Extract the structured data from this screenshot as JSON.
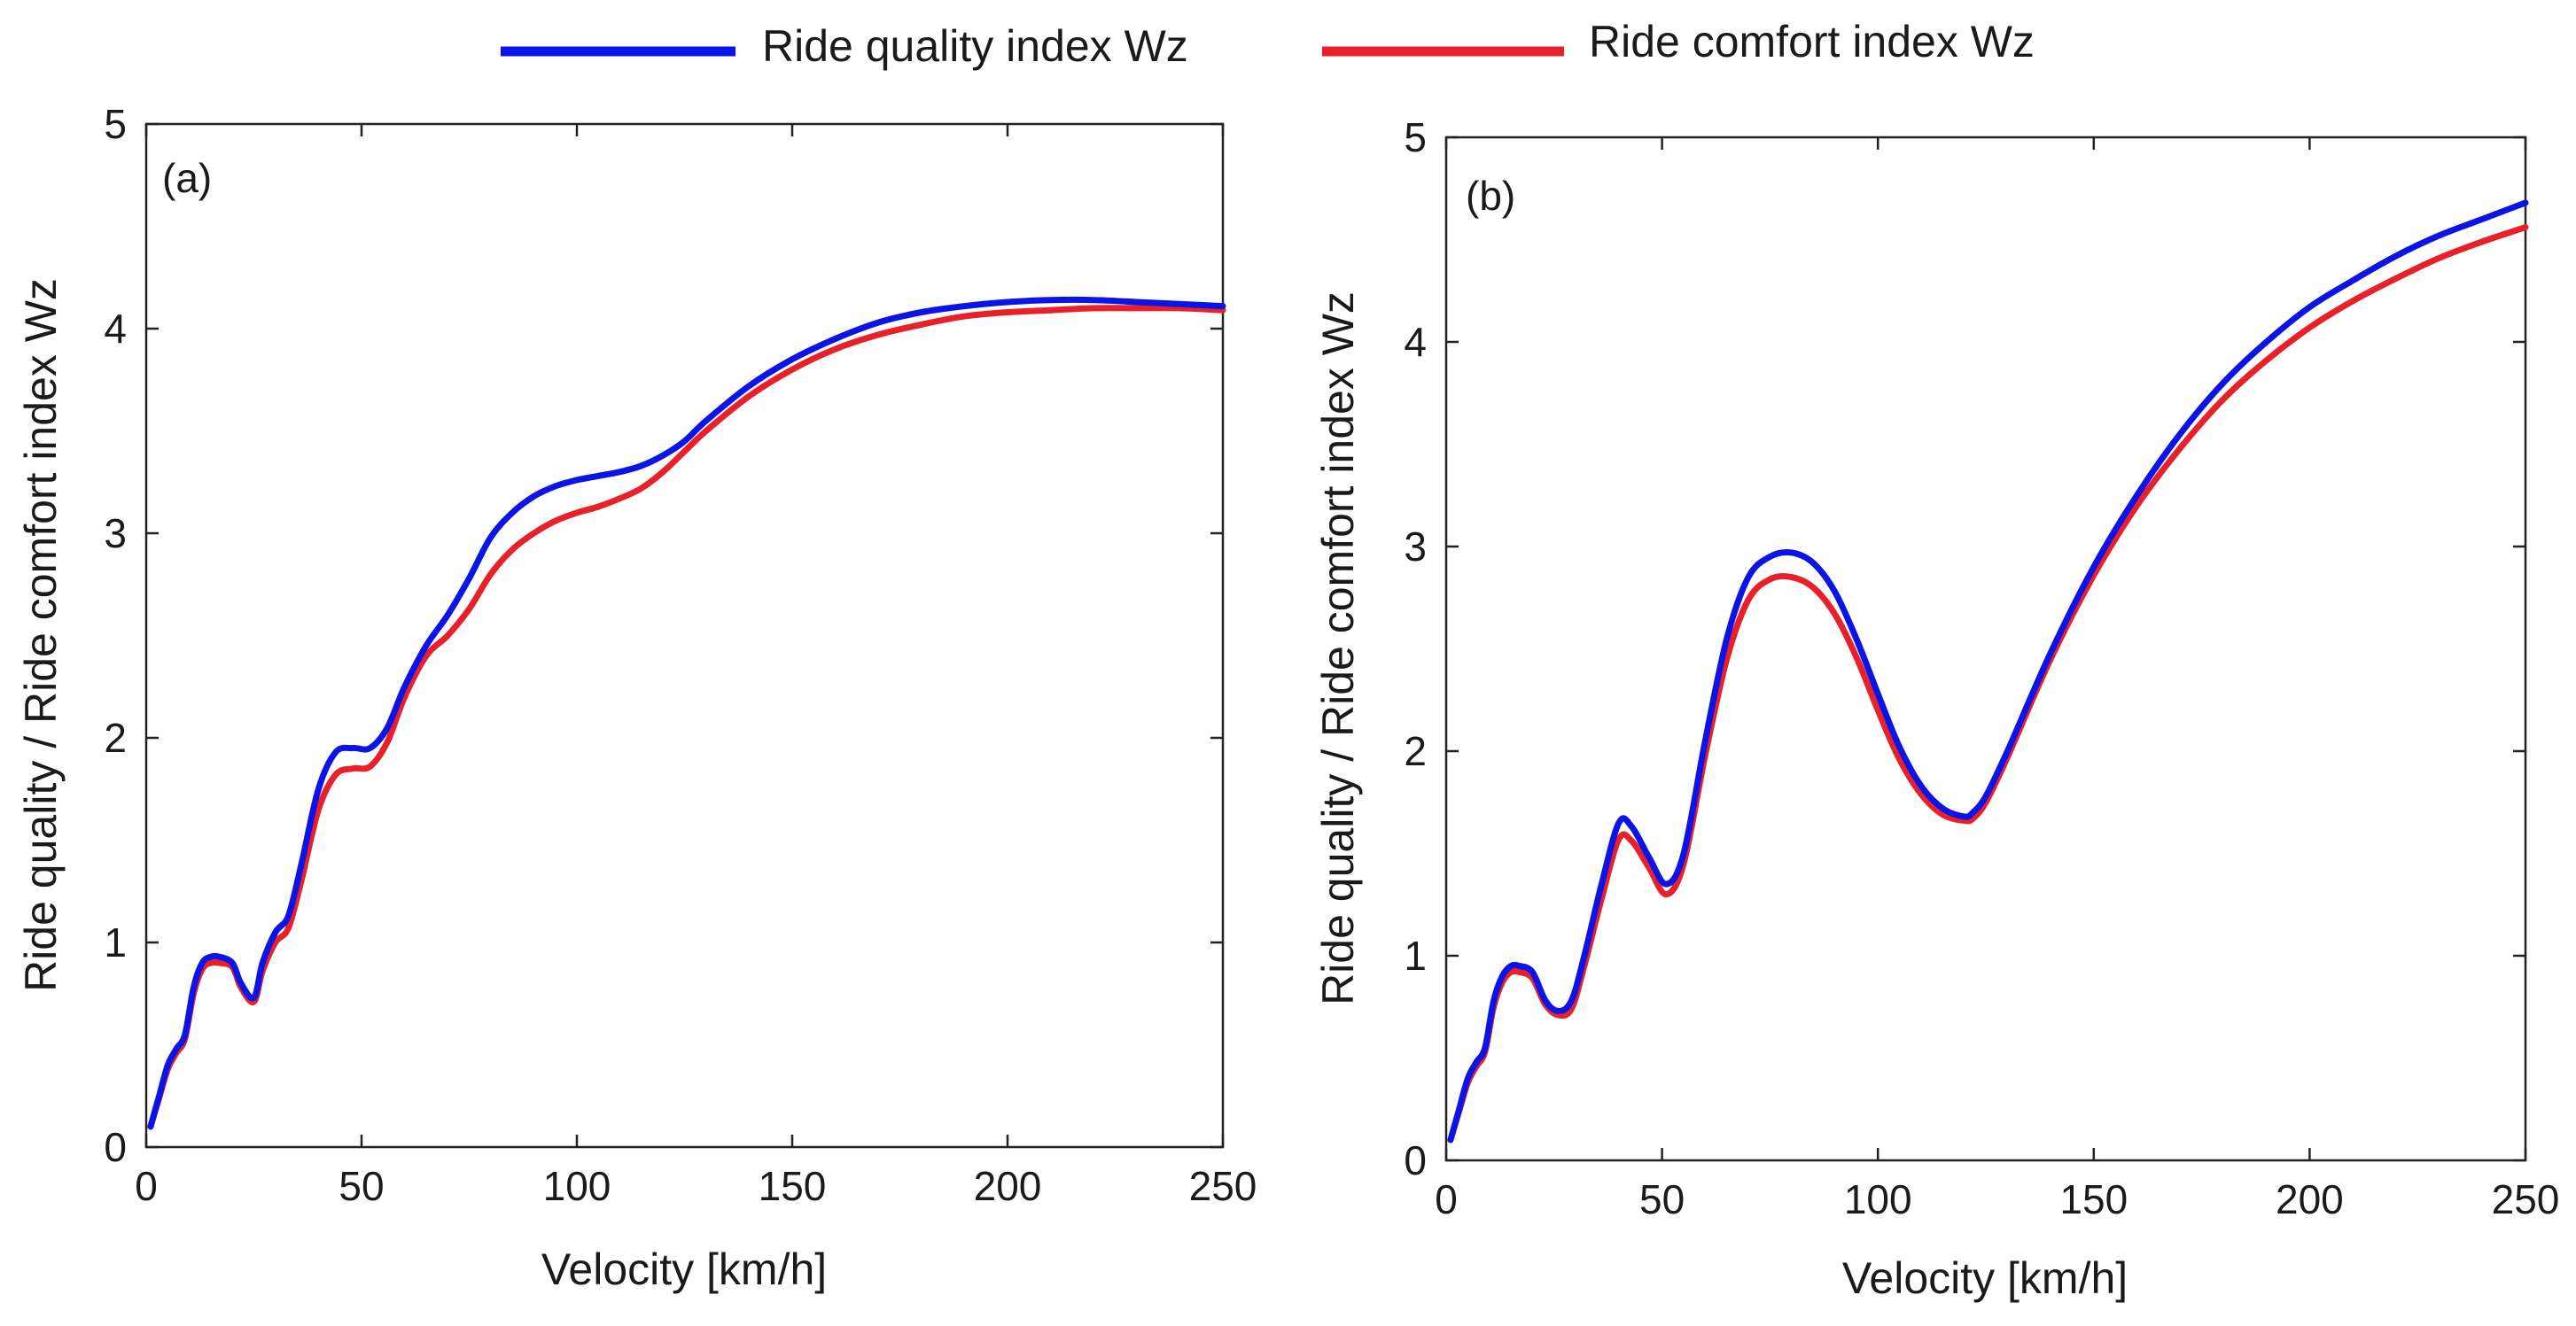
{
  "legend": {
    "items": [
      {
        "label": "Ride quality index Wz",
        "color": "#0b14e6"
      },
      {
        "label": "Ride comfort index Wz",
        "color": "#e8202a"
      }
    ]
  },
  "chart_data": [
    {
      "type": "line",
      "panel_label": "(a)",
      "xlabel": "Velocity [km/h]",
      "ylabel": "Ride quality / Ride comfort index Wz",
      "xlim": [
        0,
        250
      ],
      "ylim": [
        0,
        5
      ],
      "xticks": [
        0,
        50,
        100,
        150,
        200,
        250
      ],
      "yticks": [
        0,
        1,
        2,
        3,
        4,
        5
      ],
      "series": [
        {
          "name": "Ride quality index Wz",
          "color": "#0b14e6",
          "x": [
            1,
            3,
            5,
            7,
            9,
            11,
            13,
            15,
            17,
            20,
            22,
            25,
            27,
            30,
            33,
            36,
            40,
            44,
            48,
            52,
            56,
            60,
            65,
            70,
            75,
            80,
            85,
            90,
            95,
            100,
            105,
            110,
            115,
            120,
            125,
            130,
            140,
            150,
            160,
            170,
            180,
            190,
            200,
            210,
            220,
            230,
            240,
            250
          ],
          "y": [
            0.1,
            0.25,
            0.4,
            0.48,
            0.55,
            0.78,
            0.9,
            0.93,
            0.93,
            0.9,
            0.8,
            0.73,
            0.9,
            1.05,
            1.13,
            1.38,
            1.75,
            1.93,
            1.95,
            1.95,
            2.05,
            2.25,
            2.45,
            2.6,
            2.78,
            2.98,
            3.1,
            3.18,
            3.23,
            3.26,
            3.28,
            3.3,
            3.33,
            3.38,
            3.45,
            3.55,
            3.72,
            3.85,
            3.95,
            4.03,
            4.08,
            4.11,
            4.13,
            4.14,
            4.14,
            4.13,
            4.12,
            4.11
          ]
        },
        {
          "name": "Ride comfort index Wz",
          "color": "#e8202a",
          "x": [
            1,
            3,
            5,
            7,
            9,
            11,
            13,
            15,
            17,
            20,
            22,
            25,
            27,
            30,
            33,
            36,
            40,
            44,
            48,
            52,
            56,
            60,
            65,
            70,
            75,
            80,
            85,
            90,
            95,
            100,
            105,
            110,
            115,
            120,
            125,
            130,
            140,
            150,
            160,
            170,
            180,
            190,
            200,
            210,
            220,
            230,
            240,
            250
          ],
          "y": [
            0.1,
            0.24,
            0.38,
            0.46,
            0.53,
            0.75,
            0.87,
            0.9,
            0.9,
            0.88,
            0.78,
            0.71,
            0.86,
            1.0,
            1.07,
            1.3,
            1.65,
            1.82,
            1.85,
            1.86,
            1.98,
            2.2,
            2.4,
            2.5,
            2.63,
            2.8,
            2.92,
            3.0,
            3.06,
            3.1,
            3.13,
            3.17,
            3.22,
            3.3,
            3.4,
            3.5,
            3.67,
            3.8,
            3.9,
            3.97,
            4.02,
            4.06,
            4.08,
            4.09,
            4.1,
            4.1,
            4.1,
            4.09
          ]
        }
      ]
    },
    {
      "type": "line",
      "panel_label": "(b)",
      "xlabel": "Velocity [km/h]",
      "ylabel": "Ride quality / Ride comfort index Wz",
      "xlim": [
        0,
        250
      ],
      "ylim": [
        0,
        5
      ],
      "xticks": [
        0,
        50,
        100,
        150,
        200,
        250
      ],
      "yticks": [
        0,
        1,
        2,
        3,
        4,
        5
      ],
      "series": [
        {
          "name": "Ride quality index Wz",
          "color": "#0b14e6",
          "x": [
            1,
            3,
            5,
            7,
            9,
            11,
            13,
            15,
            17,
            20,
            23,
            26,
            29,
            32,
            36,
            40,
            43,
            47,
            51,
            55,
            60,
            65,
            70,
            75,
            80,
            85,
            90,
            95,
            100,
            105,
            110,
            115,
            120,
            122,
            125,
            130,
            140,
            150,
            160,
            170,
            180,
            190,
            200,
            210,
            220,
            230,
            240,
            250
          ],
          "y": [
            0.1,
            0.25,
            0.4,
            0.48,
            0.55,
            0.78,
            0.9,
            0.95,
            0.95,
            0.92,
            0.78,
            0.73,
            0.78,
            1.0,
            1.35,
            1.65,
            1.63,
            1.48,
            1.35,
            1.5,
            2.05,
            2.55,
            2.85,
            2.95,
            2.97,
            2.92,
            2.78,
            2.55,
            2.28,
            2.02,
            1.83,
            1.72,
            1.68,
            1.7,
            1.78,
            2.0,
            2.48,
            2.9,
            3.25,
            3.55,
            3.8,
            4.0,
            4.17,
            4.3,
            4.42,
            4.52,
            4.6,
            4.68
          ]
        },
        {
          "name": "Ride comfort index Wz",
          "color": "#e8202a",
          "x": [
            1,
            3,
            5,
            7,
            9,
            11,
            13,
            15,
            17,
            20,
            23,
            26,
            29,
            32,
            36,
            40,
            43,
            47,
            51,
            55,
            60,
            65,
            70,
            75,
            80,
            85,
            90,
            95,
            100,
            105,
            110,
            115,
            120,
            122,
            125,
            130,
            140,
            150,
            160,
            170,
            180,
            190,
            200,
            210,
            220,
            230,
            240,
            250
          ],
          "y": [
            0.1,
            0.24,
            0.38,
            0.46,
            0.53,
            0.75,
            0.87,
            0.92,
            0.92,
            0.89,
            0.76,
            0.71,
            0.74,
            0.95,
            1.28,
            1.57,
            1.56,
            1.43,
            1.3,
            1.45,
            1.98,
            2.45,
            2.74,
            2.84,
            2.85,
            2.8,
            2.67,
            2.46,
            2.2,
            1.96,
            1.79,
            1.69,
            1.66,
            1.67,
            1.75,
            1.97,
            2.45,
            2.86,
            3.2,
            3.48,
            3.72,
            3.91,
            4.07,
            4.2,
            4.31,
            4.41,
            4.49,
            4.56
          ]
        }
      ]
    }
  ]
}
